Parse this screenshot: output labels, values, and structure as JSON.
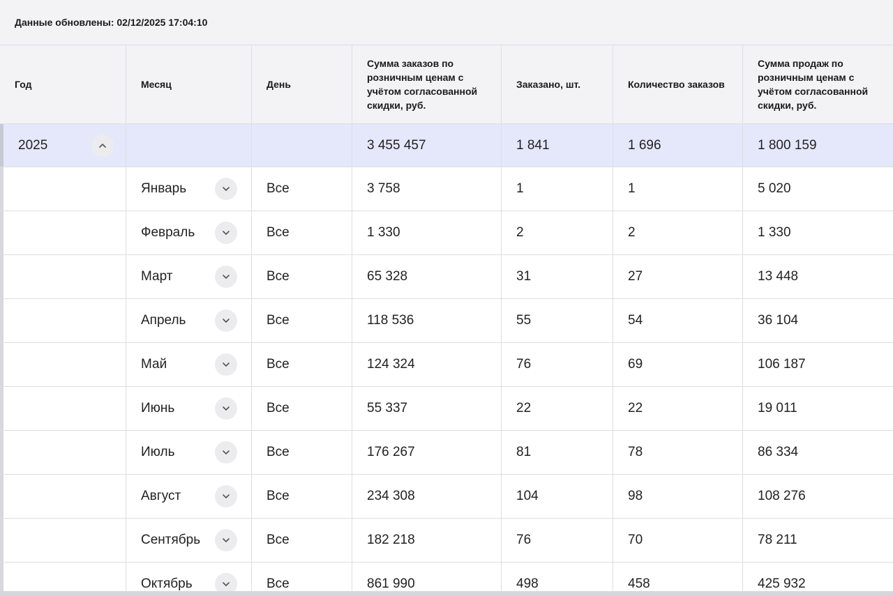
{
  "status": {
    "updated_text": "Данные обновлены: 02/12/2025 17:04:10"
  },
  "table": {
    "headers": [
      "Год",
      "Месяц",
      "День",
      "Сумма заказов по розничным ценам с учётом согласованной скидки, руб.",
      "Заказано, шт.",
      "Количество заказов",
      "Сумма продаж по розничным ценам с учётом согласованной скидки, руб."
    ],
    "year_row": {
      "year": "2025",
      "order_sum": "3 455 457",
      "ordered_units": "1 841",
      "order_count": "1 696",
      "sales_sum": "1 800 159",
      "toggle_icon": "chevron-up-icon"
    },
    "months": [
      {
        "month": "Январь",
        "day": "Все",
        "order_sum": "3 758",
        "ordered_units": "1",
        "order_count": "1",
        "sales_sum": "5 020"
      },
      {
        "month": "Февраль",
        "day": "Все",
        "order_sum": "1 330",
        "ordered_units": "2",
        "order_count": "2",
        "sales_sum": "1 330"
      },
      {
        "month": "Март",
        "day": "Все",
        "order_sum": "65 328",
        "ordered_units": "31",
        "order_count": "27",
        "sales_sum": "13 448"
      },
      {
        "month": "Апрель",
        "day": "Все",
        "order_sum": "118 536",
        "ordered_units": "55",
        "order_count": "54",
        "sales_sum": "36 104"
      },
      {
        "month": "Май",
        "day": "Все",
        "order_sum": "124 324",
        "ordered_units": "76",
        "order_count": "69",
        "sales_sum": "106 187"
      },
      {
        "month": "Июнь",
        "day": "Все",
        "order_sum": "55 337",
        "ordered_units": "22",
        "order_count": "22",
        "sales_sum": "19 011"
      },
      {
        "month": "Июль",
        "day": "Все",
        "order_sum": "176 267",
        "ordered_units": "81",
        "order_count": "78",
        "sales_sum": "86 334"
      },
      {
        "month": "Август",
        "day": "Все",
        "order_sum": "234 308",
        "ordered_units": "104",
        "order_count": "98",
        "sales_sum": "108 276"
      },
      {
        "month": "Сентябрь",
        "day": "Все",
        "order_sum": "182 218",
        "ordered_units": "76",
        "order_count": "70",
        "sales_sum": "78 211"
      },
      {
        "month": "Октябрь",
        "day": "Все",
        "order_sum": "861 990",
        "ordered_units": "498",
        "order_count": "458",
        "sales_sum": "425 932"
      }
    ],
    "month_toggle_icon": "chevron-down-icon"
  },
  "colors": {
    "header_bg": "#f3f3f6",
    "year_row_bg": "#e4e8fa",
    "toggle_bg": "#ececef",
    "border": "#dedee3"
  }
}
